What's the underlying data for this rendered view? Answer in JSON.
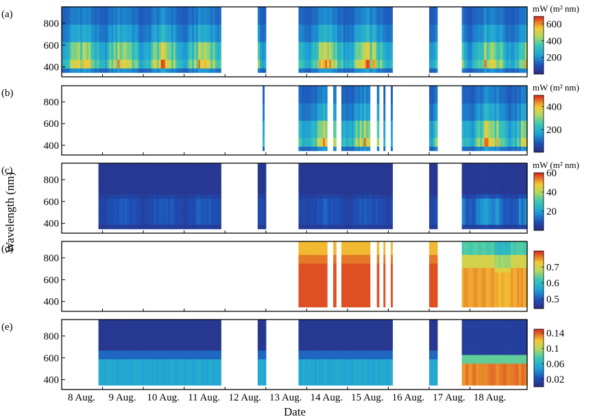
{
  "chart_data": {
    "type": "heatmap",
    "xlabel": "Date",
    "ylabel": "Wavelength (nm)",
    "x_ticks": [
      "8 Aug.",
      "9 Aug.",
      "10 Aug.",
      "11 Aug.",
      "12 Aug.",
      "13 Aug.",
      "14 Aug.",
      "15 Aug.",
      "16 Aug.",
      "17 Aug.",
      "18 Aug."
    ],
    "xlim_days": [
      8,
      19.4
    ],
    "ylim_nm": [
      310,
      950
    ],
    "y_ticks": [
      400,
      600,
      800
    ],
    "panels": [
      {
        "label": "(a)",
        "unit": "mW (m² nm)",
        "colorbar_ticks": [
          "200",
          "400",
          "600"
        ],
        "colorbar_tick_values": [
          200,
          400,
          600
        ],
        "colorbar_range": [
          0,
          690
        ],
        "pattern": "irradiance",
        "peak": 0.95,
        "data_intervals_days": [
          [
            8.0,
            11.9
          ],
          [
            12.8,
            13.0
          ],
          [
            13.8,
            16.1
          ],
          [
            17.0,
            17.2
          ],
          [
            17.8,
            19.4
          ]
        ]
      },
      {
        "label": "(b)",
        "unit": "mW (m² nm)",
        "colorbar_ticks": [
          "200",
          "400"
        ],
        "colorbar_tick_values": [
          200,
          400
        ],
        "colorbar_range": [
          0,
          500
        ],
        "pattern": "irradiance",
        "peak": 0.95,
        "data_intervals_days": [
          [
            12.92,
            12.96
          ],
          [
            13.8,
            14.5
          ],
          [
            14.65,
            14.72
          ],
          [
            14.85,
            15.55
          ],
          [
            15.72,
            15.77
          ],
          [
            15.88,
            15.92
          ],
          [
            16.06,
            16.1
          ],
          [
            17.0,
            17.2
          ],
          [
            17.8,
            19.4
          ]
        ]
      },
      {
        "label": "(c)",
        "unit": "mW (m² nm)",
        "colorbar_ticks": [
          "20",
          "40",
          "60"
        ],
        "colorbar_tick_values": [
          20,
          40,
          60
        ],
        "colorbar_range": [
          0,
          60
        ],
        "pattern": "low_irradiance",
        "peak": 0.35,
        "data_intervals_days": [
          [
            8.9,
            11.9
          ],
          [
            12.8,
            13.0
          ],
          [
            13.8,
            16.1
          ],
          [
            17.0,
            17.2
          ],
          [
            17.8,
            19.4
          ]
        ]
      },
      {
        "label": "(d)",
        "unit": "",
        "colorbar_ticks": [
          "0.5",
          "0.6",
          "0.7"
        ],
        "colorbar_tick_values": [
          0.5,
          0.6,
          0.7
        ],
        "colorbar_range": [
          0.44,
          0.8
        ],
        "pattern": "ratio",
        "peak": 0.85,
        "data_intervals_days": [
          [
            13.8,
            14.5
          ],
          [
            14.65,
            14.72
          ],
          [
            14.85,
            15.55
          ],
          [
            15.72,
            15.77
          ],
          [
            15.88,
            15.92
          ],
          [
            16.06,
            16.1
          ],
          [
            17.0,
            17.2
          ],
          [
            17.8,
            19.4
          ]
        ]
      },
      {
        "label": "(e)",
        "unit": "",
        "colorbar_ticks": [
          "0.02",
          "0.06",
          "0.1",
          "0.14"
        ],
        "colorbar_tick_values": [
          0.02,
          0.06,
          0.1,
          0.14
        ],
        "colorbar_range": [
          0.0,
          0.15
        ],
        "pattern": "attenuation",
        "peak": 0.35,
        "data_intervals_days": [
          [
            8.9,
            11.9
          ],
          [
            12.8,
            13.0
          ],
          [
            13.8,
            16.1
          ],
          [
            17.0,
            17.2
          ],
          [
            17.8,
            19.4
          ]
        ]
      }
    ]
  }
}
